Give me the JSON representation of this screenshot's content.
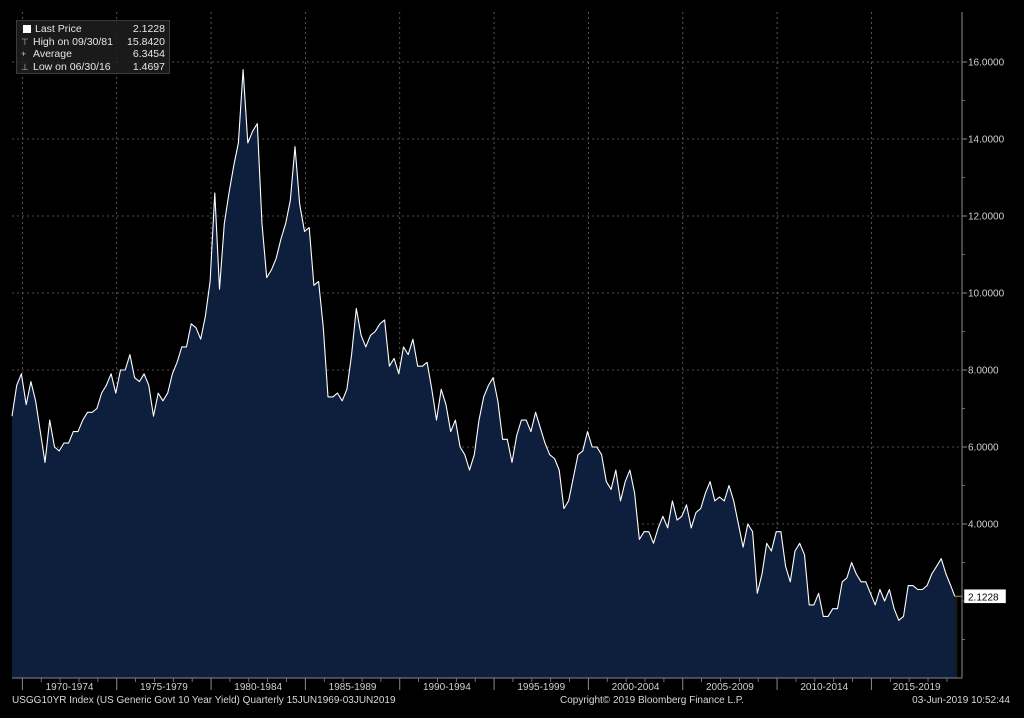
{
  "legend": {
    "last_price": {
      "label": "Last Price",
      "value": "2.1228"
    },
    "high": {
      "label": "High on 09/30/81",
      "value": "15.8420"
    },
    "average": {
      "label": "Average",
      "value": "6.3454"
    },
    "low": {
      "label": "Low on 06/30/16",
      "value": "1.4697"
    }
  },
  "footer": {
    "left": "USGG10YR Index (US Generic Govt 10 Year Yield)  Quarterly 15JUN1969-03JUN2019",
    "center": "Copyright© 2019 Bloomberg Finance L.P.",
    "right": "03-Jun-2019 10:52:44"
  },
  "colors": {
    "background": "#000000",
    "fill": "#0d1f3c",
    "line": "#ffffff",
    "grid": "#6b6b6b",
    "last_marker": "#c79a2e"
  },
  "chart_data": {
    "type": "area",
    "title": "",
    "xlabel": "",
    "ylabel": "",
    "ylim": [
      0,
      17
    ],
    "xlim": [
      1969.45,
      2019.8
    ],
    "y_ticks": [
      "16.0000",
      "14.0000",
      "12.0000",
      "10.0000",
      "8.0000",
      "6.0000",
      "4.0000"
    ],
    "y_tick_values": [
      16,
      14,
      12,
      10,
      8,
      6,
      4
    ],
    "x_tick_labels": [
      "1970-1974",
      "1975-1979",
      "1980-1984",
      "1985-1989",
      "1990-1994",
      "1995-1999",
      "2000-2004",
      "2005-2009",
      "2010-2014",
      "2015-2019"
    ],
    "x_tick_ranges": [
      [
        1970,
        1975
      ],
      [
        1975,
        1980
      ],
      [
        1980,
        1985
      ],
      [
        1985,
        1990
      ],
      [
        1990,
        1995
      ],
      [
        1995,
        2000
      ],
      [
        2000,
        2005
      ],
      [
        2005,
        2010
      ],
      [
        2010,
        2015
      ],
      [
        2015,
        2020
      ]
    ],
    "grid": true,
    "last_value_label": "2.1228",
    "last_value": 2.1228,
    "series": [
      {
        "values": [
          [
            1969.45,
            6.8
          ],
          [
            1969.7,
            7.6
          ],
          [
            1969.95,
            7.9
          ],
          [
            1970.2,
            7.1
          ],
          [
            1970.45,
            7.7
          ],
          [
            1970.7,
            7.2
          ],
          [
            1970.95,
            6.4
          ],
          [
            1971.2,
            5.6
          ],
          [
            1971.45,
            6.7
          ],
          [
            1971.7,
            6.0
          ],
          [
            1971.95,
            5.9
          ],
          [
            1972.2,
            6.1
          ],
          [
            1972.45,
            6.1
          ],
          [
            1972.7,
            6.4
          ],
          [
            1972.95,
            6.4
          ],
          [
            1973.2,
            6.7
          ],
          [
            1973.45,
            6.9
          ],
          [
            1973.7,
            6.9
          ],
          [
            1973.95,
            7.0
          ],
          [
            1974.2,
            7.4
          ],
          [
            1974.45,
            7.6
          ],
          [
            1974.7,
            7.9
          ],
          [
            1974.95,
            7.4
          ],
          [
            1975.2,
            8.0
          ],
          [
            1975.45,
            8.0
          ],
          [
            1975.7,
            8.4
          ],
          [
            1975.95,
            7.8
          ],
          [
            1976.2,
            7.7
          ],
          [
            1976.45,
            7.9
          ],
          [
            1976.7,
            7.6
          ],
          [
            1976.95,
            6.8
          ],
          [
            1977.2,
            7.4
          ],
          [
            1977.45,
            7.2
          ],
          [
            1977.7,
            7.4
          ],
          [
            1977.95,
            7.9
          ],
          [
            1978.2,
            8.2
          ],
          [
            1978.45,
            8.6
          ],
          [
            1978.7,
            8.6
          ],
          [
            1978.95,
            9.2
          ],
          [
            1979.2,
            9.1
          ],
          [
            1979.45,
            8.8
          ],
          [
            1979.7,
            9.4
          ],
          [
            1979.95,
            10.3
          ],
          [
            1980.2,
            12.6
          ],
          [
            1980.45,
            10.1
          ],
          [
            1980.7,
            11.8
          ],
          [
            1980.95,
            12.6
          ],
          [
            1981.2,
            13.3
          ],
          [
            1981.45,
            13.9
          ],
          [
            1981.7,
            15.8
          ],
          [
            1981.95,
            13.9
          ],
          [
            1982.2,
            14.2
          ],
          [
            1982.45,
            14.4
          ],
          [
            1982.7,
            11.8
          ],
          [
            1982.95,
            10.4
          ],
          [
            1983.2,
            10.6
          ],
          [
            1983.45,
            10.9
          ],
          [
            1983.7,
            11.4
          ],
          [
            1983.95,
            11.8
          ],
          [
            1984.2,
            12.4
          ],
          [
            1984.45,
            13.8
          ],
          [
            1984.7,
            12.3
          ],
          [
            1984.95,
            11.6
          ],
          [
            1985.2,
            11.7
          ],
          [
            1985.45,
            10.2
          ],
          [
            1985.7,
            10.3
          ],
          [
            1985.95,
            9.1
          ],
          [
            1986.2,
            7.3
          ],
          [
            1986.45,
            7.3
          ],
          [
            1986.7,
            7.4
          ],
          [
            1986.95,
            7.2
          ],
          [
            1987.2,
            7.5
          ],
          [
            1987.45,
            8.4
          ],
          [
            1987.7,
            9.6
          ],
          [
            1987.95,
            8.9
          ],
          [
            1988.2,
            8.6
          ],
          [
            1988.45,
            8.9
          ],
          [
            1988.7,
            9.0
          ],
          [
            1988.95,
            9.2
          ],
          [
            1989.2,
            9.3
          ],
          [
            1989.45,
            8.1
          ],
          [
            1989.7,
            8.3
          ],
          [
            1989.95,
            7.9
          ],
          [
            1990.2,
            8.6
          ],
          [
            1990.45,
            8.4
          ],
          [
            1990.7,
            8.8
          ],
          [
            1990.95,
            8.1
          ],
          [
            1991.2,
            8.1
          ],
          [
            1991.45,
            8.2
          ],
          [
            1991.7,
            7.5
          ],
          [
            1991.95,
            6.7
          ],
          [
            1992.2,
            7.5
          ],
          [
            1992.45,
            7.1
          ],
          [
            1992.7,
            6.4
          ],
          [
            1992.95,
            6.7
          ],
          [
            1993.2,
            6.0
          ],
          [
            1993.45,
            5.8
          ],
          [
            1993.7,
            5.4
          ],
          [
            1993.95,
            5.8
          ],
          [
            1994.2,
            6.7
          ],
          [
            1994.45,
            7.3
          ],
          [
            1994.7,
            7.6
          ],
          [
            1994.95,
            7.8
          ],
          [
            1995.2,
            7.2
          ],
          [
            1995.45,
            6.2
          ],
          [
            1995.7,
            6.2
          ],
          [
            1995.95,
            5.6
          ],
          [
            1996.2,
            6.3
          ],
          [
            1996.45,
            6.7
          ],
          [
            1996.7,
            6.7
          ],
          [
            1996.95,
            6.4
          ],
          [
            1997.2,
            6.9
          ],
          [
            1997.45,
            6.5
          ],
          [
            1997.7,
            6.1
          ],
          [
            1997.95,
            5.8
          ],
          [
            1998.2,
            5.7
          ],
          [
            1998.45,
            5.4
          ],
          [
            1998.7,
            4.4
          ],
          [
            1998.95,
            4.6
          ],
          [
            1999.2,
            5.2
          ],
          [
            1999.45,
            5.8
          ],
          [
            1999.7,
            5.9
          ],
          [
            1999.95,
            6.4
          ],
          [
            2000.2,
            6.0
          ],
          [
            2000.45,
            6.0
          ],
          [
            2000.7,
            5.8
          ],
          [
            2000.95,
            5.1
          ],
          [
            2001.2,
            4.9
          ],
          [
            2001.45,
            5.4
          ],
          [
            2001.7,
            4.6
          ],
          [
            2001.95,
            5.1
          ],
          [
            2002.2,
            5.4
          ],
          [
            2002.45,
            4.8
          ],
          [
            2002.7,
            3.6
          ],
          [
            2002.95,
            3.8
          ],
          [
            2003.2,
            3.8
          ],
          [
            2003.45,
            3.5
          ],
          [
            2003.7,
            3.9
          ],
          [
            2003.95,
            4.2
          ],
          [
            2004.2,
            3.9
          ],
          [
            2004.45,
            4.6
          ],
          [
            2004.7,
            4.1
          ],
          [
            2004.95,
            4.2
          ],
          [
            2005.2,
            4.5
          ],
          [
            2005.45,
            3.9
          ],
          [
            2005.7,
            4.3
          ],
          [
            2005.95,
            4.4
          ],
          [
            2006.2,
            4.8
          ],
          [
            2006.45,
            5.1
          ],
          [
            2006.7,
            4.6
          ],
          [
            2006.95,
            4.7
          ],
          [
            2007.2,
            4.6
          ],
          [
            2007.45,
            5.0
          ],
          [
            2007.7,
            4.6
          ],
          [
            2007.95,
            4.0
          ],
          [
            2008.2,
            3.4
          ],
          [
            2008.45,
            4.0
          ],
          [
            2008.7,
            3.8
          ],
          [
            2008.95,
            2.2
          ],
          [
            2009.2,
            2.7
          ],
          [
            2009.45,
            3.5
          ],
          [
            2009.7,
            3.3
          ],
          [
            2009.95,
            3.8
          ],
          [
            2010.2,
            3.8
          ],
          [
            2010.45,
            2.9
          ],
          [
            2010.7,
            2.5
          ],
          [
            2010.95,
            3.3
          ],
          [
            2011.2,
            3.5
          ],
          [
            2011.45,
            3.2
          ],
          [
            2011.7,
            1.9
          ],
          [
            2011.95,
            1.9
          ],
          [
            2012.2,
            2.2
          ],
          [
            2012.45,
            1.6
          ],
          [
            2012.7,
            1.6
          ],
          [
            2012.95,
            1.8
          ],
          [
            2013.2,
            1.8
          ],
          [
            2013.45,
            2.5
          ],
          [
            2013.7,
            2.6
          ],
          [
            2013.95,
            3.0
          ],
          [
            2014.2,
            2.7
          ],
          [
            2014.45,
            2.5
          ],
          [
            2014.7,
            2.5
          ],
          [
            2014.95,
            2.2
          ],
          [
            2015.2,
            1.9
          ],
          [
            2015.45,
            2.3
          ],
          [
            2015.7,
            2.0
          ],
          [
            2015.95,
            2.3
          ],
          [
            2016.2,
            1.8
          ],
          [
            2016.45,
            1.5
          ],
          [
            2016.7,
            1.6
          ],
          [
            2016.95,
            2.4
          ],
          [
            2017.2,
            2.4
          ],
          [
            2017.45,
            2.3
          ],
          [
            2017.7,
            2.3
          ],
          [
            2017.95,
            2.4
          ],
          [
            2018.2,
            2.7
          ],
          [
            2018.45,
            2.9
          ],
          [
            2018.7,
            3.1
          ],
          [
            2018.95,
            2.7
          ],
          [
            2019.2,
            2.4
          ],
          [
            2019.42,
            2.1228
          ]
        ]
      }
    ]
  }
}
